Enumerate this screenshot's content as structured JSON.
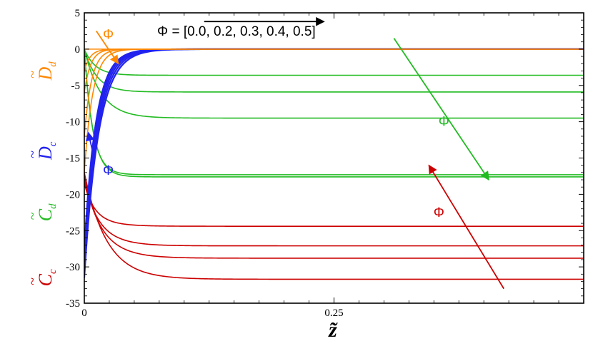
{
  "chart_data": {
    "type": "line",
    "title": "",
    "xlabel": "z̃",
    "ylabel": "",
    "xlim": [
      0,
      0.5
    ],
    "ylim": [
      -35,
      5
    ],
    "x_ticks": [
      {
        "value": 0,
        "label": "0"
      },
      {
        "value": 0.25,
        "label": "0.25"
      }
    ],
    "y_ticks": [
      {
        "value": 5,
        "label": "5"
      },
      {
        "value": 0,
        "label": "0"
      },
      {
        "value": -5,
        "label": "-5"
      },
      {
        "value": -10,
        "label": "-10"
      },
      {
        "value": -15,
        "label": "-15"
      },
      {
        "value": -20,
        "label": "-20"
      },
      {
        "value": -25,
        "label": "-25"
      },
      {
        "value": -30,
        "label": "-30"
      },
      {
        "value": -35,
        "label": "-35"
      }
    ],
    "grid": false,
    "legend_text": "Φ = [0.0, 0.2, 0.3, 0.4, 0.5]",
    "colors": {
      "Cc": "#cc0000",
      "Cd": "#22bb22",
      "Dc": "#2222ee",
      "Dd": "#ff8800",
      "legend": "#000000"
    },
    "y_category_labels": [
      {
        "id": "Dd",
        "base": "D",
        "sub": "d",
        "color": "#ff8800",
        "y_center": -3
      },
      {
        "id": "Dc",
        "base": "D",
        "sub": "c",
        "color": "#2222ee",
        "y_center": -14
      },
      {
        "id": "Cd",
        "base": "C",
        "sub": "d",
        "color": "#22bb22",
        "y_center": -22.5
      },
      {
        "id": "Cc",
        "base": "C",
        "sub": "c",
        "color": "#cc0000",
        "y_center": -31.5
      }
    ],
    "series": [
      {
        "group": "Cc",
        "color": "#cc0000",
        "start": -18.5,
        "asymptote": -24.4,
        "undershoot": -25.0,
        "k": 55
      },
      {
        "group": "Cc",
        "color": "#cc0000",
        "start": -18.0,
        "asymptote": -27.1,
        "undershoot": -27.6,
        "k": 52
      },
      {
        "group": "Cc",
        "color": "#cc0000",
        "start": -17.5,
        "asymptote": -28.8,
        "undershoot": -29.3,
        "k": 48
      },
      {
        "group": "Cc",
        "color": "#cc0000",
        "start": -17.0,
        "asymptote": -31.7,
        "undershoot": -31.7,
        "k": 45
      },
      {
        "group": "Cd",
        "color": "#22bb22",
        "start": 0.0,
        "asymptote": -3.6,
        "undershoot": -3.6,
        "k": 90
      },
      {
        "group": "Cd",
        "color": "#22bb22",
        "start": 0.0,
        "asymptote": -5.9,
        "undershoot": -5.9,
        "k": 80
      },
      {
        "group": "Cd",
        "color": "#22bb22",
        "start": 0.0,
        "asymptote": -9.5,
        "undershoot": -9.5,
        "k": 60
      },
      {
        "group": "Cd",
        "color": "#22bb22",
        "start": 0.0,
        "asymptote": -17.3,
        "undershoot": -17.3,
        "k": 120
      },
      {
        "group": "Cd",
        "color": "#22bb22",
        "start": 0.0,
        "asymptote": -17.6,
        "undershoot": -17.6,
        "k": 115
      },
      {
        "group": "Dc",
        "color": "#2222ee",
        "start": -31.5,
        "asymptote": 0.0,
        "undershoot": 0.0,
        "k": 70
      },
      {
        "group": "Dc",
        "color": "#2222ee",
        "start": -30.5,
        "asymptote": 0.0,
        "undershoot": 0.0,
        "k": 74
      },
      {
        "group": "Dc",
        "color": "#2222ee",
        "start": -29.5,
        "asymptote": 0.0,
        "undershoot": 0.0,
        "k": 78
      },
      {
        "group": "Dc",
        "color": "#2222ee",
        "start": -28.5,
        "asymptote": 0.0,
        "undershoot": 0.0,
        "k": 82
      },
      {
        "group": "Dc",
        "color": "#2222ee",
        "start": -27.5,
        "asymptote": 0.0,
        "undershoot": 0.0,
        "k": 86
      },
      {
        "group": "Dd",
        "color": "#ff8800",
        "start": -17.0,
        "asymptote": 0.0,
        "undershoot": 0.0,
        "k": 120
      },
      {
        "group": "Dd",
        "color": "#ff8800",
        "start": -12.0,
        "asymptote": 0.0,
        "undershoot": 0.0,
        "k": 140
      },
      {
        "group": "Dd",
        "color": "#ff8800",
        "start": -6.0,
        "asymptote": 0.0,
        "undershoot": 0.0,
        "k": 160
      },
      {
        "group": "Dd",
        "color": "#ff8800",
        "start": -3.0,
        "asymptote": 0.0,
        "undershoot": 0.0,
        "k": 170
      },
      {
        "group": "Dd",
        "color": "#ff8800",
        "start": 0.0,
        "asymptote": 0.0,
        "undershoot": 0.0,
        "k": 180
      }
    ],
    "annotations": [
      {
        "id": "phi-black",
        "text": "Φ = [0.0, 0.2, 0.3, 0.4, 0.5]",
        "color": "#000000",
        "arrow": [
          [
            0.12,
            3.8
          ],
          [
            0.24,
            3.8
          ]
        ]
      },
      {
        "id": "phi-green",
        "text": "Φ",
        "color": "#22bb22",
        "x": 0.36,
        "y": -10,
        "arrow": [
          [
            0.31,
            1.5
          ],
          [
            0.405,
            -18.0
          ]
        ]
      },
      {
        "id": "phi-red",
        "text": "Φ",
        "color": "#cc0000",
        "x": 0.355,
        "y": -22.5,
        "arrow": [
          [
            0.42,
            -33.0
          ],
          [
            0.345,
            -16.0
          ]
        ]
      },
      {
        "id": "phi-orange",
        "text": "Φ",
        "color": "#ff8800",
        "x": 0.024,
        "y": 2.0,
        "arrow": [
          [
            0.012,
            2.5
          ],
          [
            0.034,
            -2.0
          ]
        ]
      },
      {
        "id": "phi-blue",
        "text": "Φ",
        "color": "#2222ee",
        "x": 0.024,
        "y": -16.7,
        "arrow": [
          [
            0.009,
            -14.5
          ],
          [
            0.004,
            -11.5
          ]
        ]
      }
    ]
  }
}
